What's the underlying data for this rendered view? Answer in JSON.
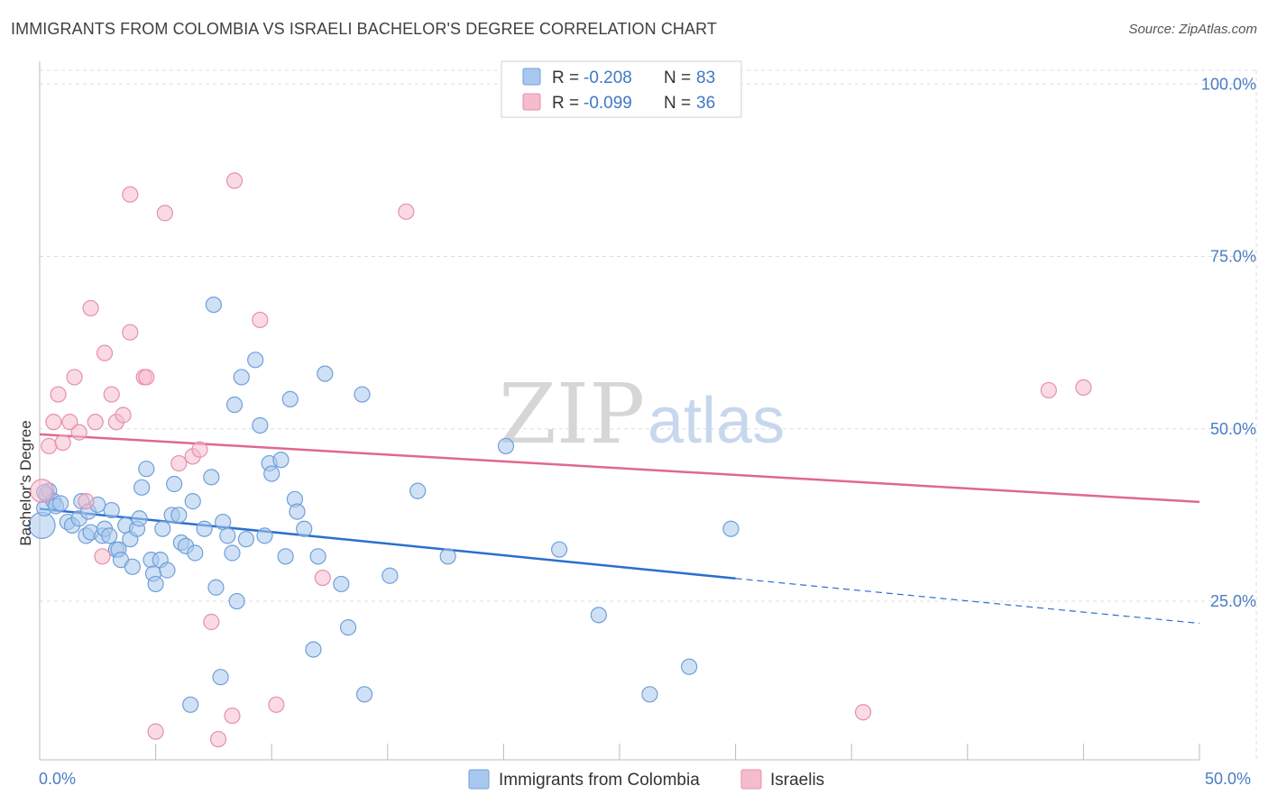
{
  "title": "IMMIGRANTS FROM COLOMBIA VS ISRAELI BACHELOR'S DEGREE CORRELATION CHART",
  "source": "Source: ZipAtlas.com",
  "watermark": {
    "zip": "ZIP",
    "atlas": "atlas"
  },
  "colors": {
    "blue_fill": "#a9c8ef",
    "blue_stroke": "#6f9fd8",
    "blue_line": "#2a6fd0",
    "pink_fill": "#f5bccc",
    "pink_stroke": "#e690ab",
    "pink_line": "#e0688f",
    "grid": "#dddddd",
    "tick_text": "#4a7cc4"
  },
  "legend": {
    "r_label": "R =",
    "n_label": "N =",
    "colombia": {
      "r": "-0.208",
      "n": "83"
    },
    "israelis": {
      "r": "-0.099",
      "n": "36"
    }
  },
  "chart_data": {
    "type": "scatter",
    "title": "IMMIGRANTS FROM COLOMBIA VS ISRAELI BACHELOR'S DEGREE CORRELATION CHART",
    "xlabel": "",
    "ylabel": "Bachelor's Degree",
    "xlim": [
      0,
      50
    ],
    "ylim": [
      2,
      102
    ],
    "x_tick_labels": [
      "0.0%",
      "50.0%"
    ],
    "y_ticks": [
      25,
      50,
      75,
      100
    ],
    "y_tick_labels": [
      "25.0%",
      "50.0%",
      "75.0%",
      "100.0%"
    ],
    "series": [
      {
        "name": "Immigrants from Colombia",
        "color": "#a9c8ef",
        "trend": {
          "x0": 0,
          "y0": 38.4,
          "x1": 30,
          "y1": 28.3,
          "dash_to_x": 50,
          "dash_to_y": 21.8
        },
        "points": [
          [
            0.1,
            36,
            1.7
          ],
          [
            0.2,
            38.5,
            1
          ],
          [
            0.3,
            40.5,
            1
          ],
          [
            0.4,
            41,
            1
          ],
          [
            0.6,
            39.5,
            1
          ],
          [
            0.7,
            38.8,
            1
          ],
          [
            0.9,
            39.2,
            1
          ],
          [
            1.2,
            36.5,
            1
          ],
          [
            1.4,
            36,
            1
          ],
          [
            1.7,
            37,
            1
          ],
          [
            1.8,
            39.5,
            1
          ],
          [
            2.0,
            34.5,
            1
          ],
          [
            2.1,
            38,
            1
          ],
          [
            2.2,
            35,
            1
          ],
          [
            2.5,
            39,
            1
          ],
          [
            2.7,
            34.5,
            1
          ],
          [
            2.8,
            35.5,
            1
          ],
          [
            3.0,
            34.5,
            1
          ],
          [
            3.1,
            38.2,
            1
          ],
          [
            3.3,
            32.5,
            1
          ],
          [
            3.4,
            32.5,
            1
          ],
          [
            3.5,
            31,
            1
          ],
          [
            3.7,
            36,
            1
          ],
          [
            3.9,
            34,
            1
          ],
          [
            4.0,
            30,
            1
          ],
          [
            4.2,
            35.5,
            1
          ],
          [
            4.3,
            37,
            1
          ],
          [
            4.4,
            41.5,
            1
          ],
          [
            4.6,
            44.2,
            1
          ],
          [
            4.8,
            31,
            1
          ],
          [
            4.9,
            29,
            1
          ],
          [
            5.0,
            27.5,
            1
          ],
          [
            5.2,
            31,
            1
          ],
          [
            5.3,
            35.5,
            1
          ],
          [
            5.5,
            29.5,
            1
          ],
          [
            5.7,
            37.5,
            1
          ],
          [
            5.8,
            42,
            1
          ],
          [
            6.0,
            37.5,
            1
          ],
          [
            6.1,
            33.5,
            1
          ],
          [
            6.3,
            33,
            1
          ],
          [
            6.5,
            10,
            1
          ],
          [
            6.6,
            39.5,
            1
          ],
          [
            6.7,
            32,
            1
          ],
          [
            7.1,
            35.5,
            1
          ],
          [
            7.4,
            43,
            1
          ],
          [
            7.5,
            68,
            1
          ],
          [
            7.6,
            27,
            1
          ],
          [
            7.8,
            14,
            1
          ],
          [
            7.9,
            36.5,
            1
          ],
          [
            8.1,
            34.5,
            1
          ],
          [
            8.3,
            32,
            1
          ],
          [
            8.4,
            53.5,
            1
          ],
          [
            8.5,
            25,
            1
          ],
          [
            8.7,
            57.5,
            1
          ],
          [
            8.9,
            34,
            1
          ],
          [
            9.3,
            60,
            1
          ],
          [
            9.5,
            50.5,
            1
          ],
          [
            9.7,
            34.5,
            1
          ],
          [
            9.9,
            45,
            1
          ],
          [
            10.0,
            43.5,
            1
          ],
          [
            10.4,
            45.5,
            1
          ],
          [
            10.6,
            31.5,
            1
          ],
          [
            10.8,
            54.3,
            1
          ],
          [
            11.0,
            39.8,
            1
          ],
          [
            11.1,
            38,
            1
          ],
          [
            11.4,
            35.5,
            1
          ],
          [
            11.8,
            18,
            1
          ],
          [
            12.0,
            31.5,
            1
          ],
          [
            12.3,
            58,
            1
          ],
          [
            13.0,
            27.5,
            1
          ],
          [
            13.3,
            21.2,
            1
          ],
          [
            13.9,
            55,
            1
          ],
          [
            14.0,
            11.5,
            1
          ],
          [
            15.1,
            28.7,
            1
          ],
          [
            16.3,
            41,
            1
          ],
          [
            17.6,
            31.5,
            1
          ],
          [
            20.1,
            47.5,
            1
          ],
          [
            22.4,
            32.5,
            1
          ],
          [
            24.1,
            23,
            1
          ],
          [
            26.3,
            11.5,
            1
          ],
          [
            28.0,
            15.5,
            1
          ],
          [
            29.8,
            35.5,
            1
          ],
          [
            0.2,
            40.8,
            1
          ]
        ]
      },
      {
        "name": "Israelis",
        "color": "#f5bccc",
        "trend": {
          "x0": 0,
          "y0": 49.2,
          "x1": 50,
          "y1": 39.4
        },
        "points": [
          [
            0.1,
            41,
            1.5
          ],
          [
            0.4,
            47.5,
            1
          ],
          [
            0.6,
            51,
            1
          ],
          [
            0.8,
            55,
            1
          ],
          [
            1.0,
            48,
            1
          ],
          [
            1.3,
            51,
            1
          ],
          [
            1.5,
            57.5,
            1
          ],
          [
            1.7,
            49.5,
            1
          ],
          [
            2.0,
            39.5,
            1
          ],
          [
            2.2,
            67.5,
            1
          ],
          [
            2.4,
            51,
            1
          ],
          [
            2.7,
            31.5,
            1
          ],
          [
            2.8,
            61,
            1
          ],
          [
            3.1,
            55,
            1
          ],
          [
            3.3,
            51,
            1
          ],
          [
            3.6,
            52,
            1
          ],
          [
            3.9,
            84,
            1
          ],
          [
            3.9,
            64,
            1
          ],
          [
            4.5,
            57.5,
            1
          ],
          [
            4.6,
            57.5,
            1
          ],
          [
            5.0,
            6.1,
            1
          ],
          [
            5.4,
            81.3,
            1
          ],
          [
            6.0,
            45,
            1
          ],
          [
            6.6,
            46,
            1
          ],
          [
            6.9,
            47,
            1
          ],
          [
            7.4,
            22,
            1
          ],
          [
            7.7,
            5,
            1
          ],
          [
            8.3,
            8.4,
            1
          ],
          [
            8.4,
            86,
            1
          ],
          [
            9.5,
            65.8,
            1
          ],
          [
            10.2,
            10,
            1
          ],
          [
            12.2,
            28.4,
            1
          ],
          [
            15.8,
            81.5,
            1
          ],
          [
            35.5,
            8.9,
            1
          ],
          [
            43.5,
            55.6,
            1
          ],
          [
            45.0,
            56,
            1
          ]
        ]
      }
    ],
    "legend_position": "top-center"
  }
}
